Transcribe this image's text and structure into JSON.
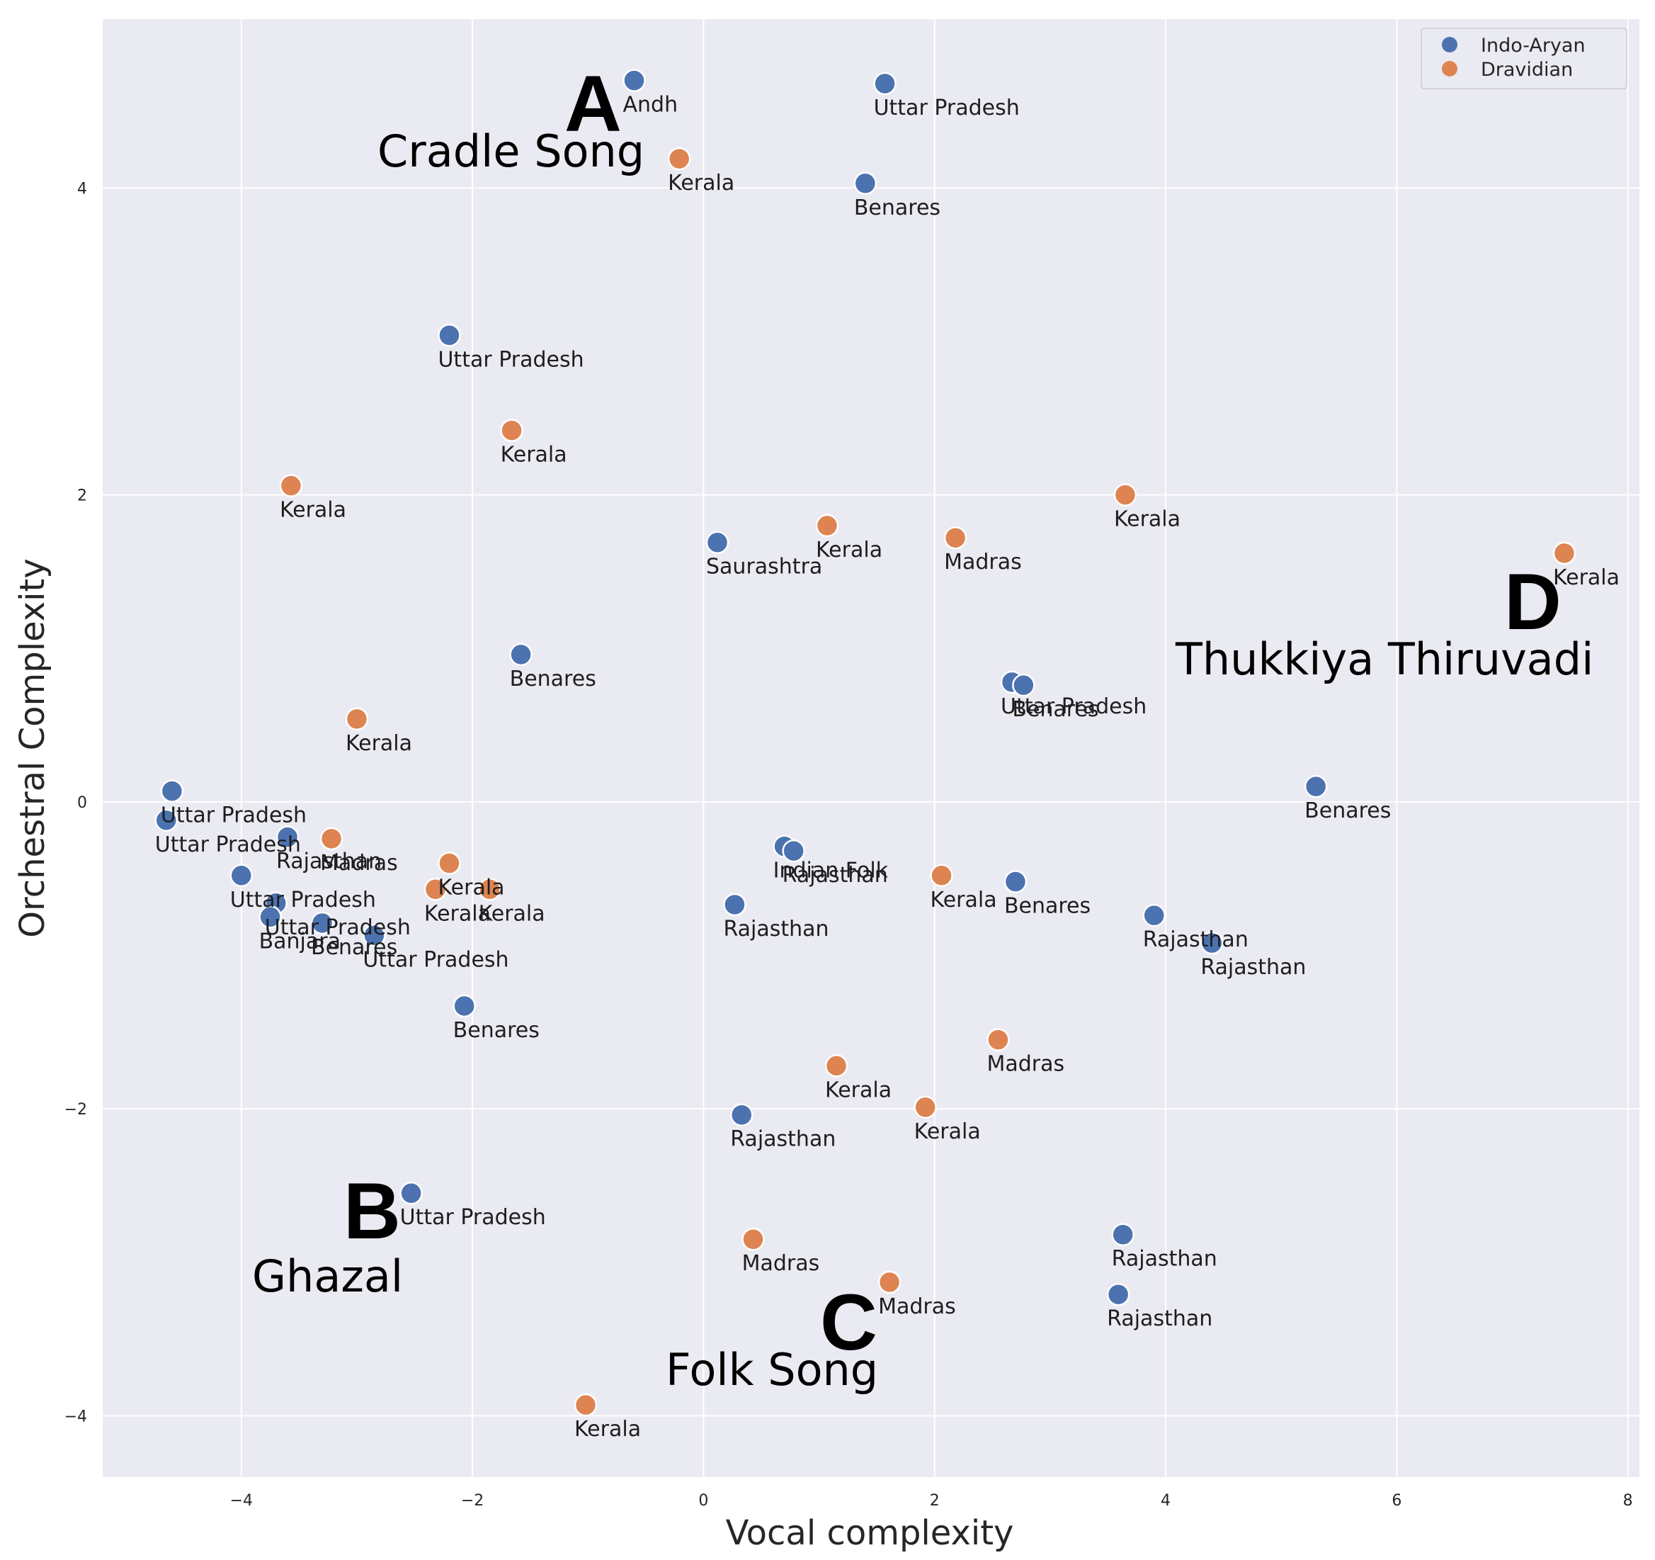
{
  "chart_data": {
    "type": "scatter",
    "xlabel": "Vocal complexity",
    "ylabel": "Orchestral Complexity",
    "xlim": [
      -5.2,
      8.1
    ],
    "ylim": [
      -4.4,
      5.1
    ],
    "xticks": [
      -4,
      -2,
      0,
      2,
      4,
      6,
      8
    ],
    "yticks": [
      -4,
      -2,
      0,
      2,
      4
    ],
    "grid": true,
    "legend_position": "top-right",
    "colors": {
      "Indo-Aryan": "#4c72b0",
      "Dravidian": "#dd8452",
      "background": "#eaeaf2",
      "grid": "#ffffff"
    },
    "series": [
      {
        "name": "Indo-Aryan",
        "color": "#4c72b0",
        "points": [
          {
            "x": -0.6,
            "y": 4.7,
            "label": "Andh"
          },
          {
            "x": 1.57,
            "y": 4.68,
            "label": "Uttar Pradesh"
          },
          {
            "x": 1.4,
            "y": 4.03,
            "label": "Benares"
          },
          {
            "x": -2.2,
            "y": 3.04,
            "label": "Uttar Pradesh"
          },
          {
            "x": 0.12,
            "y": 1.69,
            "label": "Saurashtra"
          },
          {
            "x": -1.58,
            "y": 0.96,
            "label": "Benares"
          },
          {
            "x": 2.67,
            "y": 0.78,
            "label": "Uttar Pradesh"
          },
          {
            "x": 2.77,
            "y": 0.76,
            "label": "Benares"
          },
          {
            "x": -4.6,
            "y": 0.07,
            "label": "Uttar Pradesh"
          },
          {
            "x": -4.65,
            "y": -0.12,
            "label": "Uttar Pradesh"
          },
          {
            "x": 5.3,
            "y": 0.1,
            "label": "Benares"
          },
          {
            "x": -3.6,
            "y": -0.23,
            "label": "Rajasthan"
          },
          {
            "x": -4.0,
            "y": -0.48,
            "label": "Uttar Pradesh"
          },
          {
            "x": -3.7,
            "y": -0.66,
            "label": "Uttar Pradesh"
          },
          {
            "x": -3.75,
            "y": -0.75,
            "label": "Banjara"
          },
          {
            "x": -3.3,
            "y": -0.79,
            "label": "Benares"
          },
          {
            "x": -2.85,
            "y": -0.87,
            "label": "Uttar Pradesh"
          },
          {
            "x": 0.7,
            "y": -0.29,
            "label": "Indian Folk"
          },
          {
            "x": 0.78,
            "y": -0.32,
            "label": "Rajasthan"
          },
          {
            "x": 2.7,
            "y": -0.52,
            "label": "Benares"
          },
          {
            "x": 0.27,
            "y": -0.67,
            "label": "Rajasthan"
          },
          {
            "x": 3.9,
            "y": -0.74,
            "label": "Rajasthan"
          },
          {
            "x": 4.4,
            "y": -0.92,
            "label": "Rajasthan"
          },
          {
            "x": -2.07,
            "y": -1.33,
            "label": "Benares"
          },
          {
            "x": 0.33,
            "y": -2.04,
            "label": "Rajasthan"
          },
          {
            "x": -2.53,
            "y": -2.55,
            "label": "Uttar Pradesh"
          },
          {
            "x": 3.63,
            "y": -2.82,
            "label": "Rajasthan"
          },
          {
            "x": 3.59,
            "y": -3.21,
            "label": "Rajasthan"
          }
        ]
      },
      {
        "name": "Dravidian",
        "color": "#dd8452",
        "points": [
          {
            "x": -0.21,
            "y": 4.19,
            "label": "Kerala"
          },
          {
            "x": -1.66,
            "y": 2.42,
            "label": "Kerala"
          },
          {
            "x": -3.57,
            "y": 2.06,
            "label": "Kerala"
          },
          {
            "x": 3.65,
            "y": 2.0,
            "label": "Kerala"
          },
          {
            "x": 1.07,
            "y": 1.8,
            "label": "Kerala"
          },
          {
            "x": 2.18,
            "y": 1.72,
            "label": "Madras"
          },
          {
            "x": 7.45,
            "y": 1.62,
            "label": "Kerala"
          },
          {
            "x": -3.0,
            "y": 0.54,
            "label": "Kerala"
          },
          {
            "x": -3.22,
            "y": -0.24,
            "label": "Madras"
          },
          {
            "x": -2.2,
            "y": -0.4,
            "label": "Kerala"
          },
          {
            "x": -2.32,
            "y": -0.57,
            "label": "Kerala"
          },
          {
            "x": -1.85,
            "y": -0.57,
            "label": "Kerala"
          },
          {
            "x": 2.06,
            "y": -0.48,
            "label": "Kerala"
          },
          {
            "x": 2.55,
            "y": -1.55,
            "label": "Madras"
          },
          {
            "x": 1.15,
            "y": -1.72,
            "label": "Kerala"
          },
          {
            "x": 1.92,
            "y": -1.99,
            "label": "Kerala"
          },
          {
            "x": 0.43,
            "y": -2.85,
            "label": "Madras"
          },
          {
            "x": 1.61,
            "y": -3.13,
            "label": "Madras"
          },
          {
            "x": -1.02,
            "y": -3.93,
            "label": "Kerala"
          }
        ]
      }
    ],
    "annotations": [
      {
        "letter": "A",
        "text": "Cradle Song"
      },
      {
        "letter": "B",
        "text": "Ghazal"
      },
      {
        "letter": "C",
        "text": "Folk Song"
      },
      {
        "letter": "D",
        "text": "Thukkiya Thiruvadi"
      }
    ]
  }
}
